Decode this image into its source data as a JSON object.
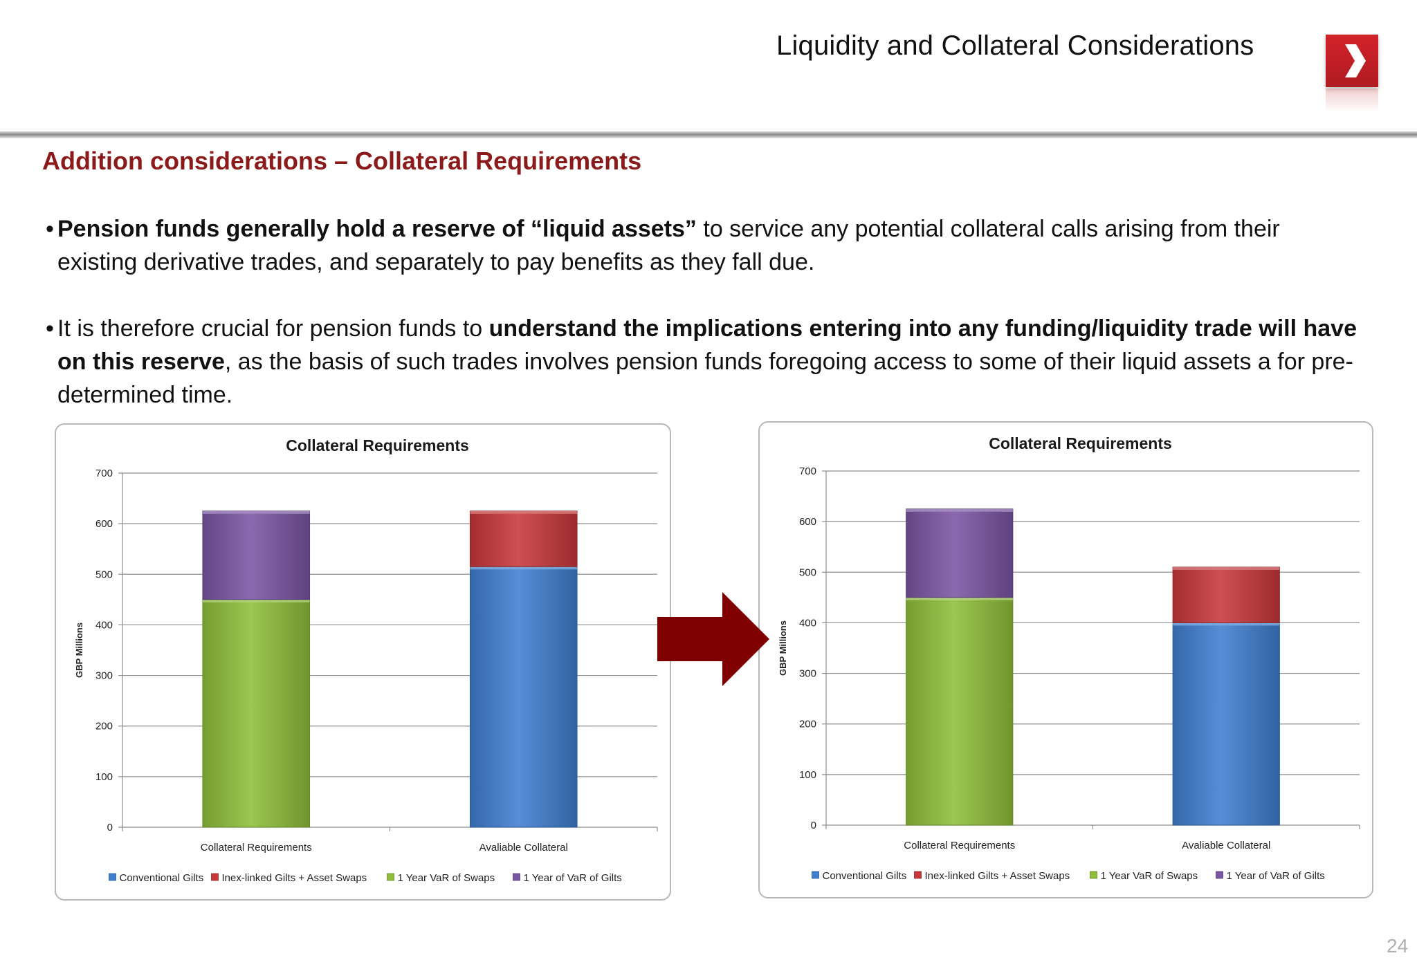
{
  "header": {
    "title": "Liquidity and Collateral Considerations"
  },
  "section": {
    "heading": "Addition considerations – Collateral Requirements"
  },
  "bullets": [
    {
      "marker": "•",
      "segments": [
        {
          "text": "Pension funds generally  hold a reserve of “liquid assets”",
          "bold": true
        },
        {
          "text": " to service any potential collateral calls arising from their existing derivative trades, and separately to pay benefits as they fall due.",
          "bold": false
        }
      ]
    },
    {
      "marker": "•",
      "segments": [
        {
          "text": "It is therefore crucial for pension funds to ",
          "bold": false
        },
        {
          "text": "understand the implications entering into any funding/liquidity trade will have on this reserve",
          "bold": true
        },
        {
          "text": ", as the basis of such trades involves pension funds foregoing access to some of their liquid assets a for pre-determined time.",
          "bold": false
        }
      ]
    }
  ],
  "page_number": "24",
  "colors": {
    "heading": "#8b1a1a",
    "arrow": "#7f0000",
    "logo": "#c41f26",
    "conventional_gilts": "#3f7fd0",
    "inex_linked": "#c8373a",
    "var_swaps": "#8fbf3a",
    "var_gilts": "#7a55a3"
  },
  "chart_data": [
    {
      "type": "bar",
      "stacked": true,
      "title": "Collateral Requirements",
      "ylabel": "GBP Millions",
      "xlabel": "",
      "ylim": [
        0,
        700
      ],
      "yticks": [
        0,
        100,
        200,
        300,
        400,
        500,
        600,
        700
      ],
      "grid": true,
      "legend": "bottom",
      "categories": [
        "Collateral Requirements",
        "Avaliable Collateral"
      ],
      "series": [
        {
          "name": "Conventional Gilts",
          "color": "#3f7fd0",
          "values": [
            0,
            515
          ]
        },
        {
          "name": "Inex-linked Gilts + Asset Swaps",
          "color": "#c8373a",
          "values": [
            0,
            110
          ]
        },
        {
          "name": "1 Year VaR of Swaps",
          "color": "#8fbf3a",
          "values": [
            450,
            0
          ]
        },
        {
          "name": "1 Year of VaR of Gilts",
          "color": "#7a55a3",
          "values": [
            175,
            0
          ]
        }
      ]
    },
    {
      "type": "bar",
      "stacked": true,
      "title": "Collateral Requirements",
      "ylabel": "GBP Millions",
      "xlabel": "",
      "ylim": [
        0,
        700
      ],
      "yticks": [
        0,
        100,
        200,
        300,
        400,
        500,
        600,
        700
      ],
      "grid": true,
      "legend": "bottom",
      "categories": [
        "Collateral Requirements",
        "Avaliable Collateral"
      ],
      "series": [
        {
          "name": "Conventional Gilts",
          "color": "#3f7fd0",
          "values": [
            0,
            400
          ]
        },
        {
          "name": "Inex-linked Gilts + Asset Swaps",
          "color": "#c8373a",
          "values": [
            0,
            110
          ]
        },
        {
          "name": "1 Year VaR of Swaps",
          "color": "#8fbf3a",
          "values": [
            450,
            0
          ]
        },
        {
          "name": "1 Year of VaR of Gilts",
          "color": "#7a55a3",
          "values": [
            175,
            0
          ]
        }
      ]
    }
  ]
}
